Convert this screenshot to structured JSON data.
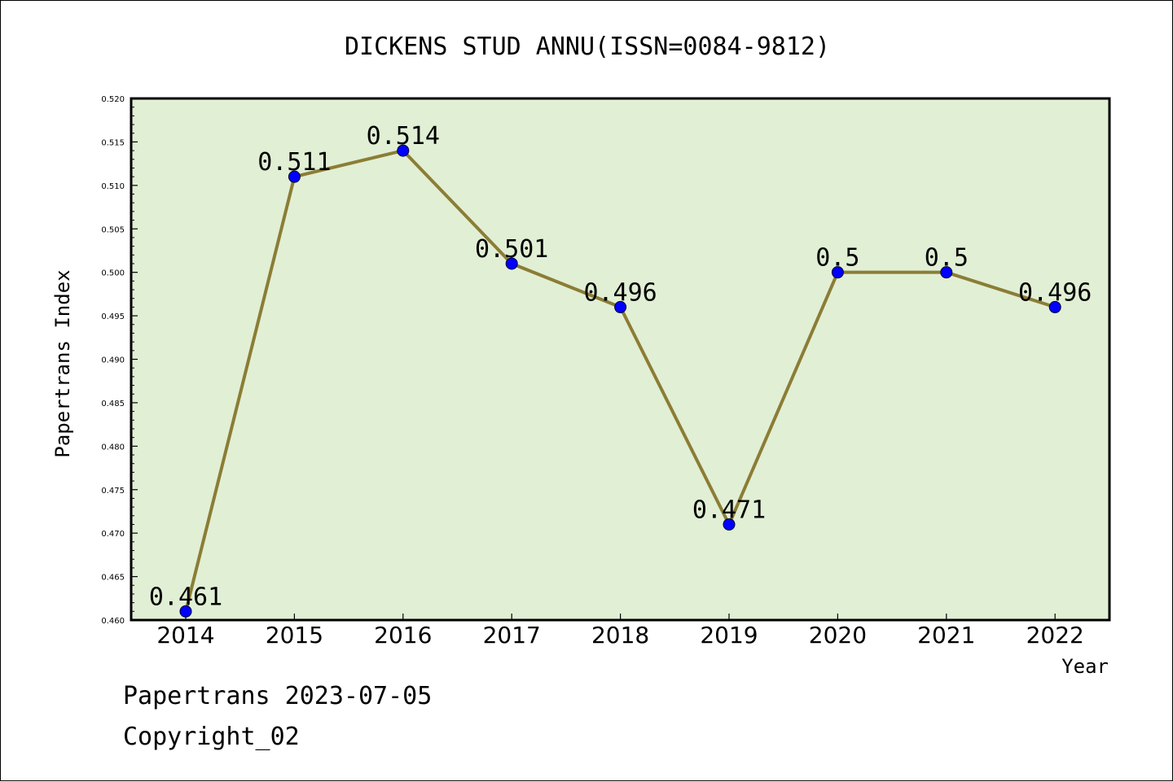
{
  "chart_data": {
    "type": "line",
    "title": "DICKENS STUD ANNU(ISSN=0084-9812)",
    "xlabel": "Year",
    "ylabel": "Papertrans Index",
    "categories": [
      "2014",
      "2015",
      "2016",
      "2017",
      "2018",
      "2019",
      "2020",
      "2021",
      "2022"
    ],
    "series": [
      {
        "values": [
          0.461,
          0.511,
          0.514,
          0.501,
          0.496,
          0.471,
          0.5,
          0.5,
          0.496
        ]
      }
    ],
    "data_labels": [
      "0.461",
      "0.511",
      "0.514",
      "0.501",
      "0.496",
      "0.471",
      "0.5",
      "0.5",
      "0.496"
    ],
    "ylim": [
      0.46,
      0.52
    ],
    "yticks": [
      "0.460",
      "0.465",
      "0.470",
      "0.475",
      "0.480",
      "0.485",
      "0.490",
      "0.495",
      "0.500",
      "0.505",
      "0.510",
      "0.515",
      "0.520"
    ],
    "grid": false,
    "colors": {
      "plot_background": "#e1efd5",
      "line": "#8b7d35",
      "marker": "#0000ff"
    }
  },
  "footer": {
    "line1": "Papertrans 2023-07-05",
    "line2": "Copyright_02"
  }
}
